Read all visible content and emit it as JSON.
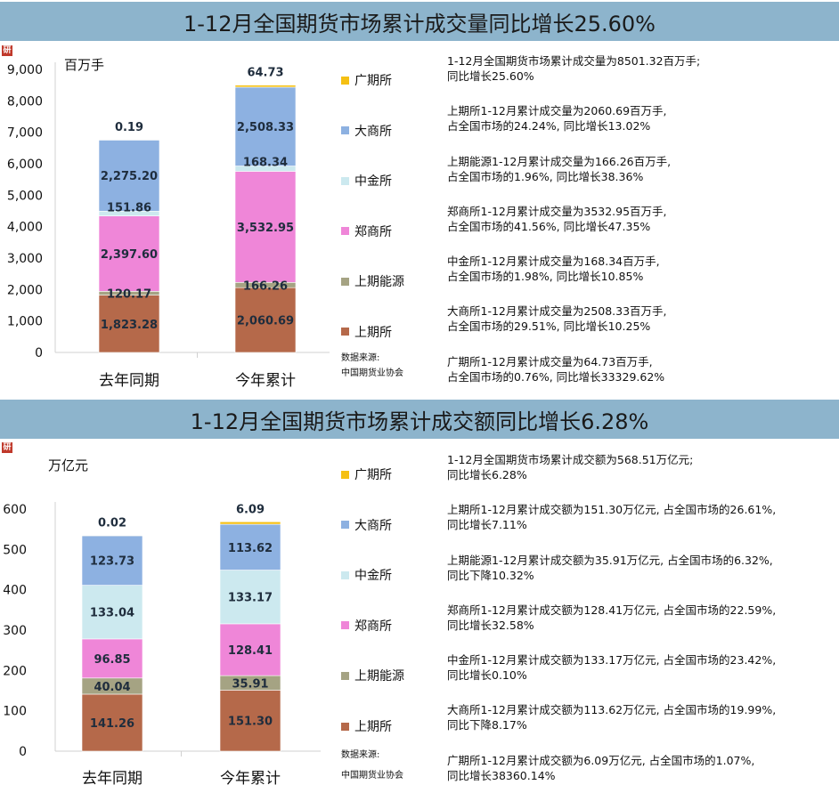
{
  "charts": [
    {
      "title": "1-12月全国期货市场累计成交量同比增长25.60%",
      "unit": "百万手",
      "source_label": "数据来源:",
      "source_name": "中国期货业协会",
      "notes": [
        [
          "1-12月全国期货市场累计成交量为8501.32百万手;",
          "同比增长25.60%"
        ],
        [
          "上期所1-12月累计成交量为2060.69百万手,",
          "占全国市场的24.24%, 同比增长13.02%"
        ],
        [
          "上期能源1-12月累计成交量为166.26百万手,",
          "占全国市场的1.96%, 同比增长38.36%"
        ],
        [
          "郑商所1-12月累计成交量为3532.95百万手,",
          "占全国市场的41.56%, 同比增长47.35%"
        ],
        [
          "中金所1-12月累计成交量为168.34百万手,",
          "占全国市场的1.98%, 同比增长10.85%"
        ],
        [
          "大商所1-12月累计成交量为2508.33百万手,",
          "占全国市场的29.51%, 同比增长10.25%"
        ],
        [
          "广期所1-12月累计成交量为64.73百万手,",
          "占全国市场的0.76%, 同比增长33329.62%"
        ]
      ]
    },
    {
      "title": "1-12月全国期货市场累计成交额同比增长6.28%",
      "unit": "万亿元",
      "source_label": "数据来源:",
      "source_name": "中国期货业协会",
      "notes": [
        [
          "1-12月全国期货市场累计成交额为568.51万亿元;",
          "同比增长6.28%"
        ],
        [
          "上期所1-12月累计成交额为151.30万亿元, 占全国市场的26.61%,",
          "同比增长7.11%"
        ],
        [
          "上期能源1-12月累计成交额为35.91万亿元, 占全国市场的6.32%,",
          "同比下降10.32%"
        ],
        [
          "郑商所1-12月累计成交额为128.41万亿元, 占全国市场的22.59%,",
          "同比增长32.58%"
        ],
        [
          "中金所1-12月累计成交额为133.17万亿元, 占全国市场的23.42%,",
          "同比增长0.10%"
        ],
        [
          "大商所1-12月累计成交额为113.62万亿元, 占全国市场的19.99%,",
          "同比下降8.17%"
        ],
        [
          "广期所1-12月累计成交额为6.09万亿元, 占全国市场的1.07%,",
          "同比增长38360.14%"
        ]
      ]
    }
  ],
  "chart_data": [
    {
      "type": "bar",
      "stacked": true,
      "title": "1-12月全国期货市场累计成交量同比增长25.60%",
      "ylabel": "百万手",
      "categories": [
        "去年同期",
        "今年累计"
      ],
      "ylim": [
        0,
        9000
      ],
      "yticks": [
        "0",
        "1,000",
        "2,000",
        "3,000",
        "4,000",
        "5,000",
        "6,000",
        "7,000",
        "8,000",
        "9,000"
      ],
      "grid": false,
      "legend_position": "right",
      "series": [
        {
          "name": "上期所",
          "color": "#b5694a",
          "values": [
            1823.28,
            2060.69
          ],
          "labels": [
            "1,823.28",
            "2,060.69"
          ]
        },
        {
          "name": "上期能源",
          "color": "#a5a383",
          "values": [
            120.17,
            166.26
          ],
          "labels": [
            "120.17",
            "166.26"
          ]
        },
        {
          "name": "郑商所",
          "color": "#ef86d8",
          "values": [
            2397.6,
            3532.95
          ],
          "labels": [
            "2,397.60",
            "3,532.95"
          ]
        },
        {
          "name": "中金所",
          "color": "#cce9ef",
          "values": [
            151.86,
            168.34
          ],
          "labels": [
            "151.86",
            "168.34"
          ]
        },
        {
          "name": "大商所",
          "color": "#8db1e1",
          "values": [
            2275.2,
            2508.33
          ],
          "labels": [
            "2,275.20",
            "2,508.33"
          ]
        },
        {
          "name": "广期所",
          "color": "#f5c013",
          "values": [
            0.19,
            64.73
          ],
          "labels": [
            "0.19",
            "64.73"
          ]
        }
      ]
    },
    {
      "type": "bar",
      "stacked": true,
      "title": "1-12月全国期货市场累计成交额同比增长6.28%",
      "ylabel": "万亿元",
      "categories": [
        "去年同期",
        "今年累计"
      ],
      "ylim": [
        0,
        600
      ],
      "yticks": [
        "0",
        "100",
        "200",
        "300",
        "400",
        "500",
        "600"
      ],
      "grid": false,
      "legend_position": "right",
      "series": [
        {
          "name": "上期所",
          "color": "#b5694a",
          "values": [
            141.26,
            151.3
          ],
          "labels": [
            "141.26",
            "151.30"
          ]
        },
        {
          "name": "上期能源",
          "color": "#a5a383",
          "values": [
            40.04,
            35.91
          ],
          "labels": [
            "40.04",
            "35.91"
          ]
        },
        {
          "name": "郑商所",
          "color": "#ef86d8",
          "values": [
            96.85,
            128.41
          ],
          "labels": [
            "96.85",
            "128.41"
          ]
        },
        {
          "name": "中金所",
          "color": "#cce9ef",
          "values": [
            133.04,
            133.17
          ],
          "labels": [
            "133.04",
            "133.17"
          ]
        },
        {
          "name": "大商所",
          "color": "#8db1e1",
          "values": [
            123.73,
            113.62
          ],
          "labels": [
            "123.73",
            "113.62"
          ]
        },
        {
          "name": "广期所",
          "color": "#f5c013",
          "values": [
            0.02,
            6.09
          ],
          "labels": [
            "0.02",
            "6.09"
          ]
        }
      ]
    }
  ]
}
